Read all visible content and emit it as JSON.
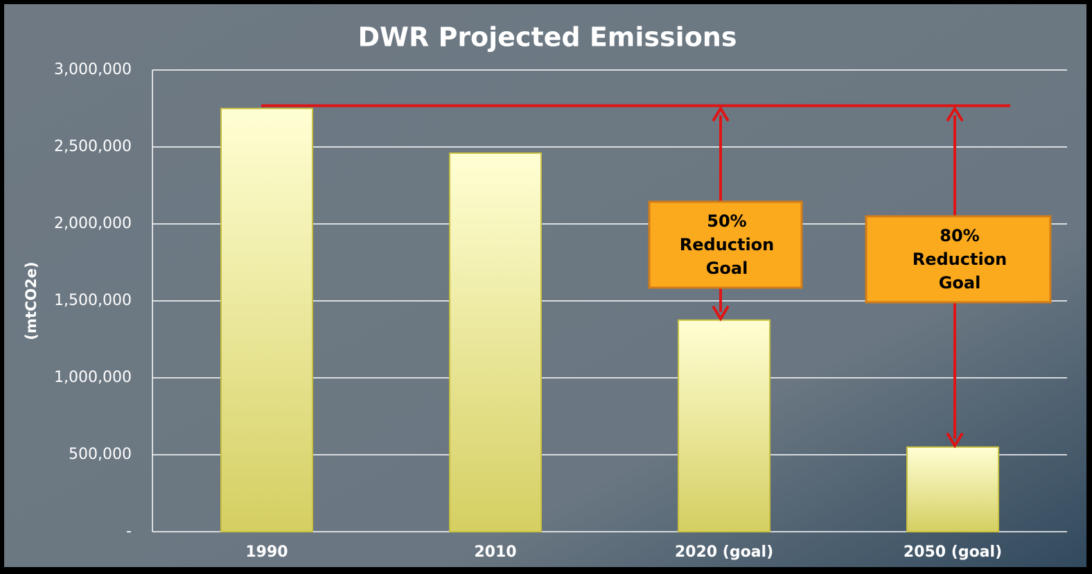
{
  "chart_data": {
    "type": "bar",
    "title": "DWR Projected Emissions",
    "y_label": "(mtCO2e)",
    "categories": [
      "1990",
      "2010",
      "2020 (goal)",
      "2050 (goal)"
    ],
    "values": [
      2750000,
      2460000,
      1375000,
      550000
    ],
    "color": "#f5f0a8",
    "ylim": [
      0,
      3000000
    ],
    "yticks": [
      {
        "value": 0,
        "label": "-"
      },
      {
        "value": 500000,
        "label": "500,000"
      },
      {
        "value": 1000000,
        "label": "1,000,000"
      },
      {
        "value": 1500000,
        "label": "1,500,000"
      },
      {
        "value": 2000000,
        "label": "2,000,000"
      },
      {
        "value": 2500000,
        "label": "2,500,000"
      },
      {
        "value": 3000000,
        "label": "3,000,000"
      }
    ],
    "grid": true,
    "annotations": [
      {
        "text": [
          "50%",
          "Reduction",
          "Goal"
        ]
      },
      {
        "text": [
          "80%",
          "Reduction",
          "Goal"
        ]
      }
    ]
  }
}
